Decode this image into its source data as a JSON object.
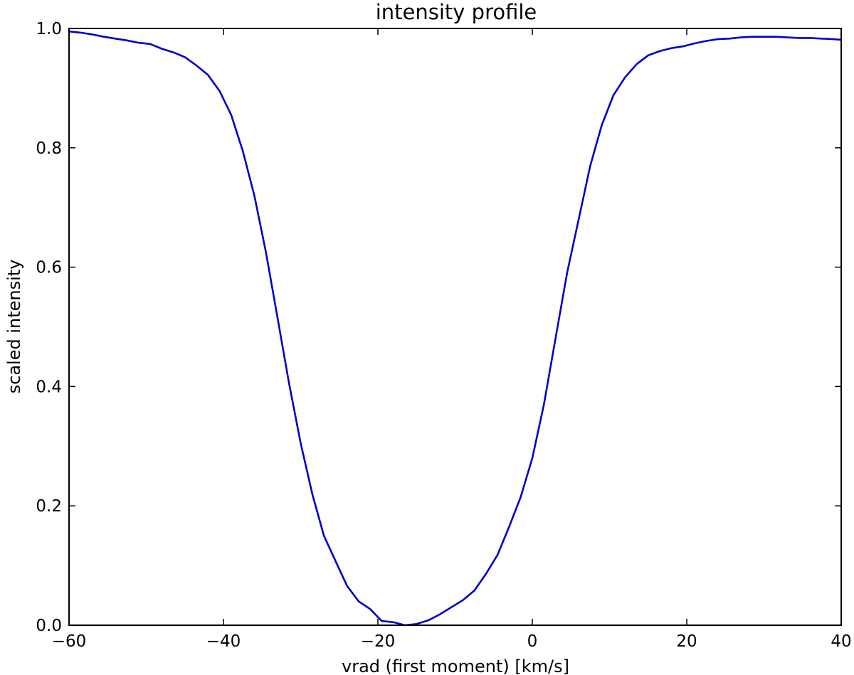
{
  "chart_data": {
    "type": "line",
    "title": "intensity profile",
    "xlabel": "vrad (first moment) [km/s]",
    "ylabel": "scaled intensity",
    "xlim": [
      -60,
      40
    ],
    "ylim": [
      0.0,
      1.0
    ],
    "xticks": [
      -60,
      -40,
      -20,
      0,
      20,
      40
    ],
    "xtick_labels": [
      "−60",
      "−40",
      "−20",
      "0",
      "20",
      "40"
    ],
    "yticks": [
      0.0,
      0.2,
      0.4,
      0.6,
      0.8,
      1.0
    ],
    "ytick_labels": [
      "0.0",
      "0.2",
      "0.4",
      "0.6",
      "0.8",
      "1.0"
    ],
    "grid": false,
    "legend": "none",
    "series": [
      {
        "color": "#0000cc",
        "x": [
          -60,
          -58.5,
          -57,
          -55.5,
          -54,
          -52.5,
          -51,
          -49.5,
          -48,
          -46.5,
          -45,
          -43.5,
          -42,
          -40.5,
          -39,
          -37.5,
          -36,
          -34.5,
          -33,
          -31.5,
          -30,
          -28.5,
          -27,
          -25.5,
          -24,
          -22.5,
          -21,
          -19.5,
          -18,
          -16.5,
          -15,
          -13.5,
          -12,
          -10.5,
          -9,
          -7.5,
          -6,
          -4.5,
          -3,
          -1.5,
          0,
          1.5,
          3,
          4.5,
          6,
          7.5,
          9,
          10.5,
          12,
          13.5,
          15,
          16.5,
          18,
          19.5,
          21,
          22.5,
          24,
          25.5,
          27,
          28.5,
          30,
          31.5,
          33,
          34.5,
          36,
          37.5,
          39,
          40
        ],
        "y": [
          0.995,
          0.993,
          0.99,
          0.986,
          0.983,
          0.98,
          0.976,
          0.974,
          0.966,
          0.96,
          0.952,
          0.938,
          0.922,
          0.895,
          0.855,
          0.795,
          0.72,
          0.625,
          0.515,
          0.405,
          0.305,
          0.22,
          0.15,
          0.108,
          0.066,
          0.04,
          0.027,
          0.007,
          0.005,
          0.0,
          0.002,
          0.008,
          0.018,
          0.03,
          0.042,
          0.058,
          0.086,
          0.118,
          0.165,
          0.215,
          0.28,
          0.37,
          0.48,
          0.59,
          0.68,
          0.77,
          0.838,
          0.888,
          0.918,
          0.94,
          0.955,
          0.962,
          0.967,
          0.97,
          0.975,
          0.979,
          0.982,
          0.983,
          0.985,
          0.986,
          0.986,
          0.986,
          0.985,
          0.984,
          0.984,
          0.983,
          0.982,
          0.981
        ]
      }
    ]
  }
}
